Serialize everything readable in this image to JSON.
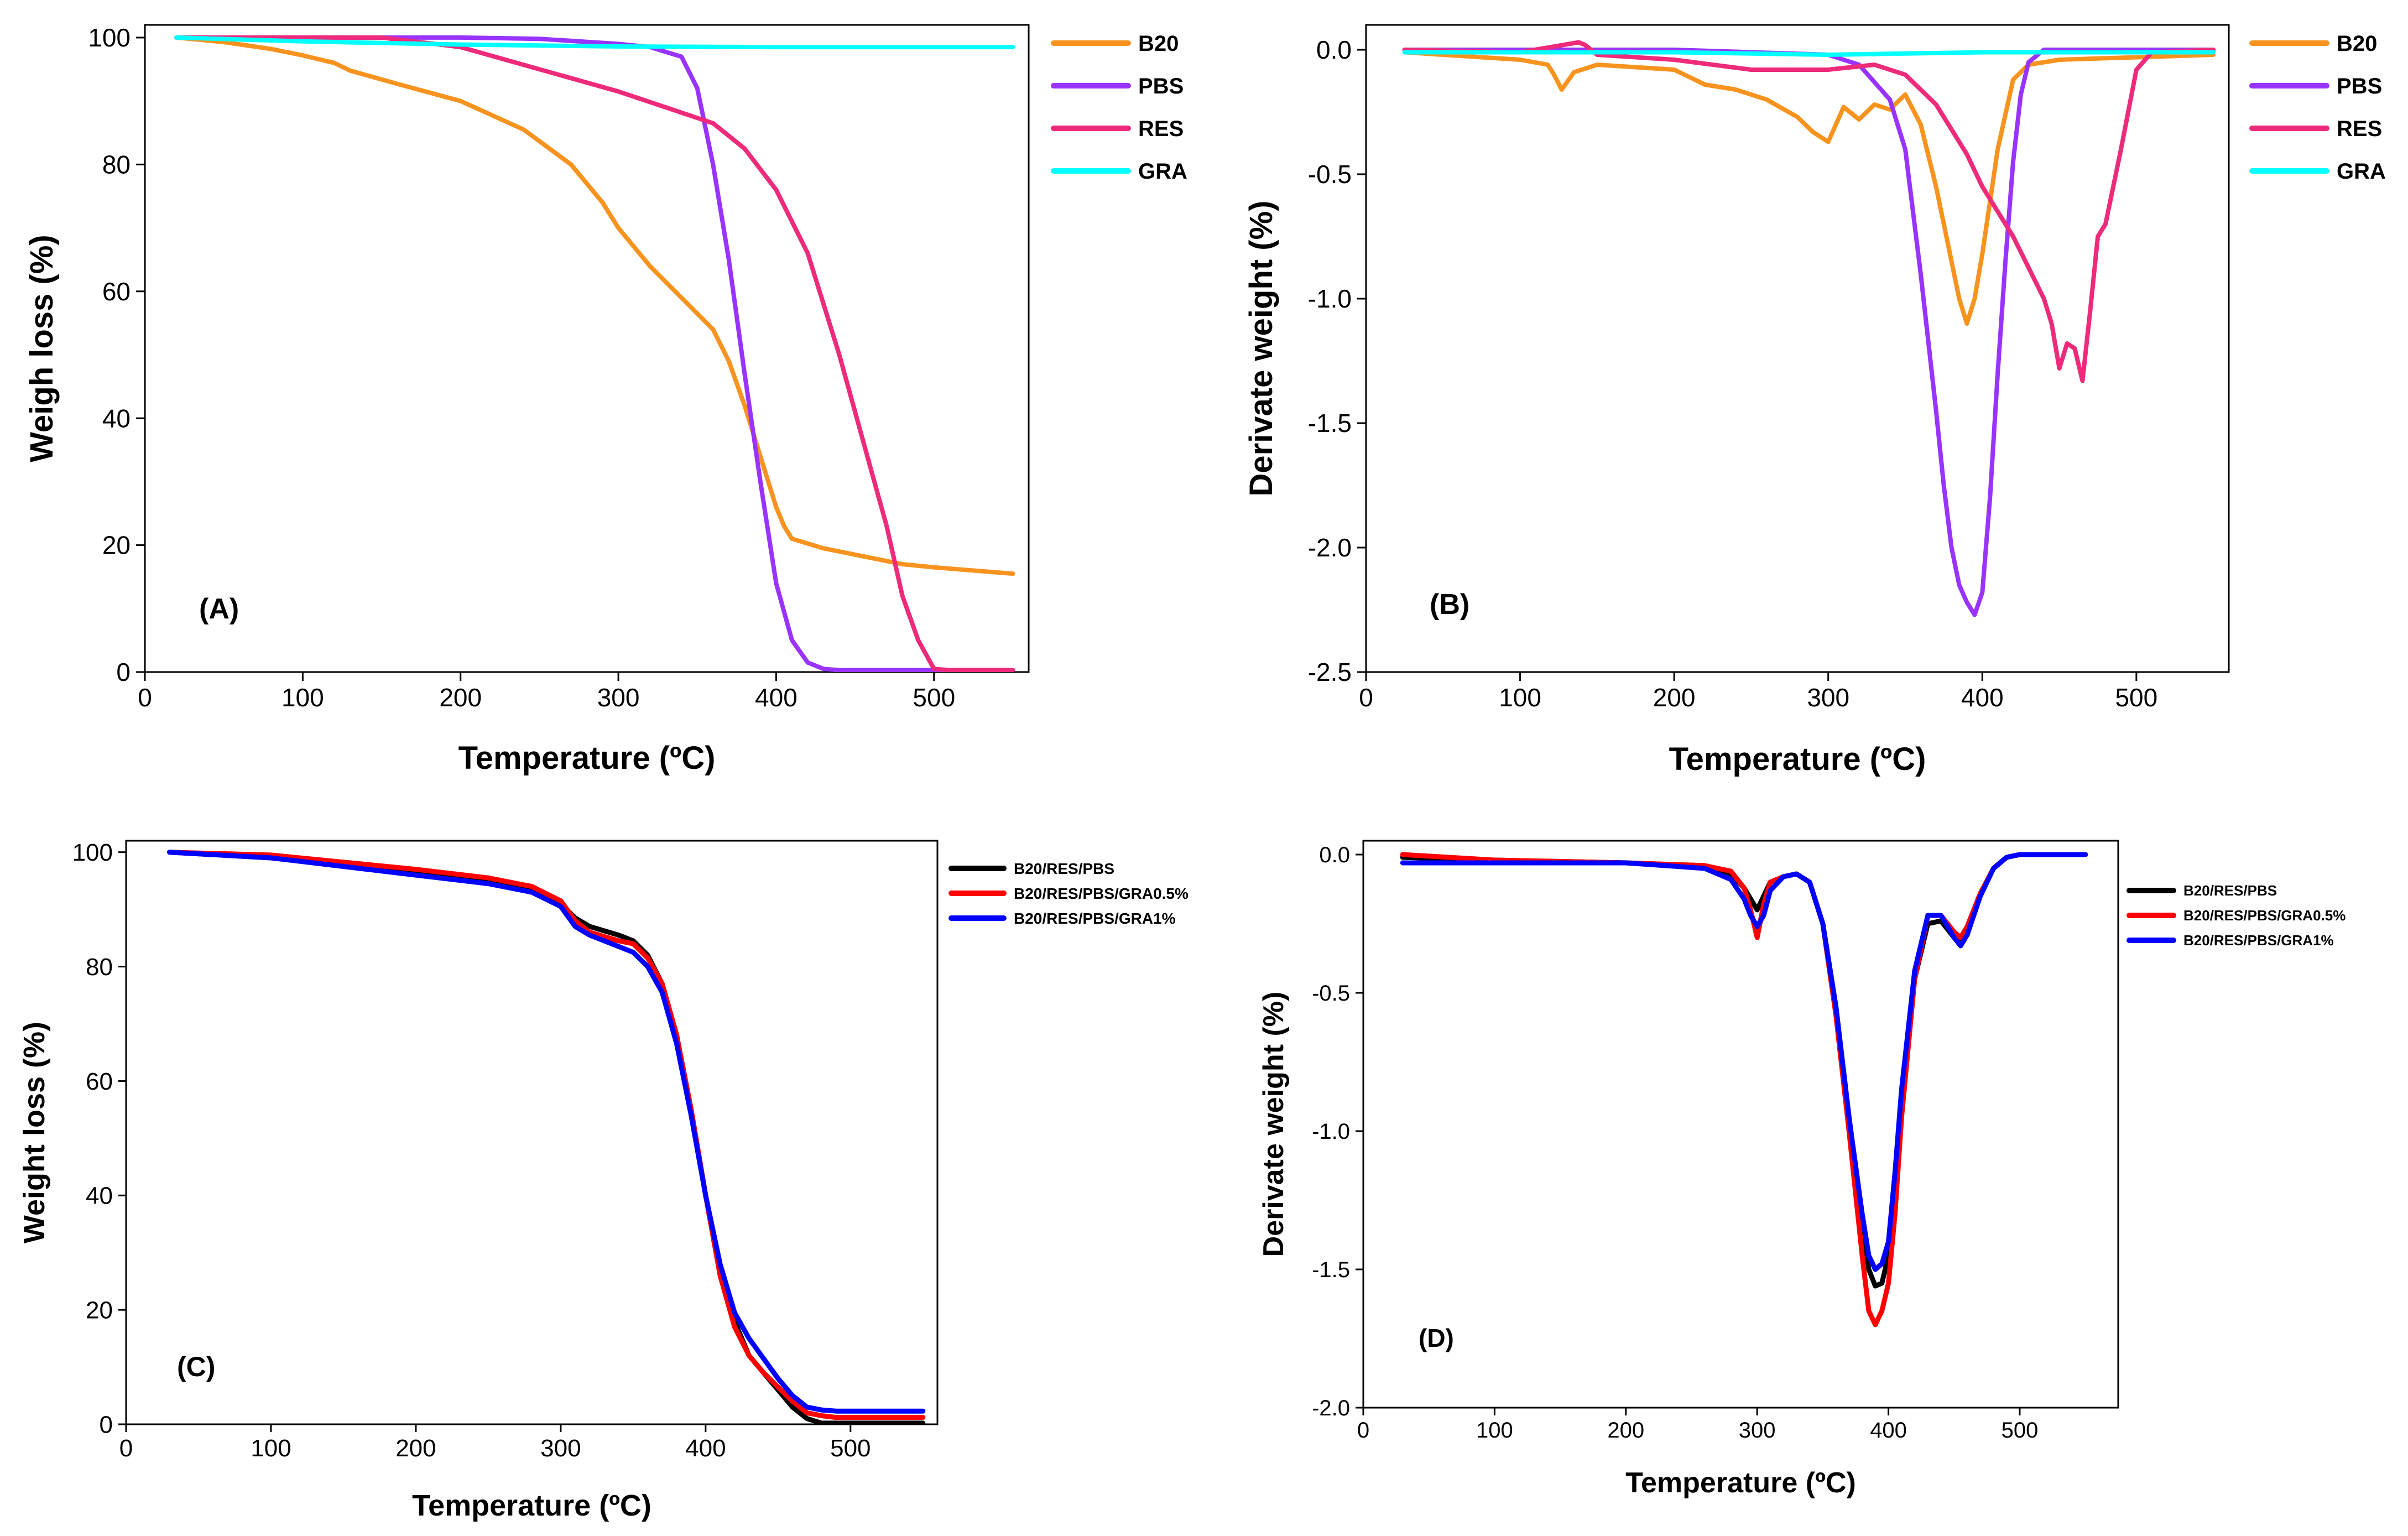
{
  "chart_data": [
    {
      "panel": "A",
      "type": "line",
      "panel_label": "(A)",
      "xlabel": "Temperature (ºC)",
      "ylabel": "Weigh loss (%)",
      "xlim": [
        0,
        560
      ],
      "ylim": [
        0,
        102
      ],
      "xticks": [
        0,
        100,
        200,
        300,
        400,
        500
      ],
      "yticks": [
        0,
        20,
        40,
        60,
        80,
        100
      ],
      "grid": false,
      "legend_position": "outside-right",
      "series": [
        {
          "name": "B20",
          "color": "#f7931e",
          "x": [
            20,
            50,
            80,
            100,
            120,
            130,
            160,
            200,
            240,
            270,
            290,
            300,
            320,
            340,
            360,
            370,
            380,
            390,
            395,
            400,
            405,
            410,
            430,
            450,
            480,
            500,
            550
          ],
          "y": [
            100,
            99.3,
            98.2,
            97.2,
            96,
            94.8,
            92.7,
            90,
            85.5,
            80,
            74,
            70,
            64,
            59,
            54,
            49,
            42,
            34,
            30,
            26,
            23,
            21,
            19.5,
            18.5,
            17,
            16.5,
            15.5
          ]
        },
        {
          "name": "PBS",
          "color": "#9933ff",
          "x": [
            20,
            100,
            200,
            250,
            300,
            320,
            340,
            350,
            360,
            370,
            380,
            390,
            400,
            410,
            420,
            430,
            440,
            450,
            500,
            550
          ],
          "y": [
            100,
            100,
            100,
            99.8,
            99,
            98.5,
            97,
            92,
            80,
            65,
            47,
            30,
            14,
            5,
            1.5,
            0.5,
            0.3,
            0.3,
            0.3,
            0.3
          ]
        },
        {
          "name": "RES",
          "color": "#ee2a7b",
          "x": [
            20,
            100,
            150,
            200,
            250,
            300,
            330,
            360,
            380,
            400,
            420,
            440,
            460,
            470,
            480,
            490,
            500,
            510,
            550
          ],
          "y": [
            100,
            100,
            100,
            98.5,
            95,
            91.5,
            89,
            86.5,
            82.5,
            76,
            66,
            50,
            32,
            23,
            12,
            5,
            0.5,
            0.3,
            0.3
          ]
        },
        {
          "name": "GRA",
          "color": "#00ffff",
          "x": [
            20,
            100,
            200,
            300,
            400,
            500,
            550
          ],
          "y": [
            100,
            99.4,
            98.9,
            98.6,
            98.5,
            98.5,
            98.5
          ]
        }
      ]
    },
    {
      "panel": "B",
      "type": "line",
      "panel_label": "(B)",
      "xlabel": "Temperature (ºC)",
      "ylabel": "Derivate weight (%)",
      "xlim": [
        0,
        560
      ],
      "ylim": [
        -2.5,
        0.1
      ],
      "xticks": [
        0,
        100,
        200,
        300,
        400,
        500
      ],
      "yticks": [
        0.0,
        -0.5,
        -1.0,
        -1.5,
        -2.0,
        -2.5
      ],
      "ytick_labels": [
        "0.0",
        "-0.5",
        "-1.0",
        "-1.5",
        "-2.0",
        "-2.5"
      ],
      "grid": false,
      "legend_position": "outside-right",
      "series": [
        {
          "name": "B20",
          "color": "#f7931e",
          "x": [
            25,
            50,
            100,
            118,
            122,
            127,
            135,
            150,
            200,
            220,
            240,
            260,
            280,
            290,
            300,
            310,
            320,
            330,
            340,
            350,
            360,
            370,
            380,
            385,
            390,
            395,
            400,
            410,
            420,
            430,
            450,
            500,
            550
          ],
          "y": [
            -0.01,
            -0.02,
            -0.04,
            -0.06,
            -0.1,
            -0.16,
            -0.09,
            -0.06,
            -0.08,
            -0.14,
            -0.16,
            -0.2,
            -0.27,
            -0.33,
            -0.37,
            -0.23,
            -0.28,
            -0.22,
            -0.24,
            -0.18,
            -0.3,
            -0.55,
            -0.85,
            -1.0,
            -1.1,
            -1.0,
            -0.82,
            -0.4,
            -0.12,
            -0.06,
            -0.04,
            -0.03,
            -0.02
          ]
        },
        {
          "name": "PBS",
          "color": "#9933ff",
          "x": [
            25,
            100,
            200,
            300,
            320,
            340,
            350,
            360,
            370,
            375,
            380,
            385,
            390,
            395,
            400,
            405,
            410,
            415,
            420,
            425,
            430,
            440,
            450,
            500,
            550
          ],
          "y": [
            0,
            0,
            0,
            -0.02,
            -0.06,
            -0.2,
            -0.4,
            -0.9,
            -1.45,
            -1.75,
            -2.0,
            -2.15,
            -2.22,
            -2.27,
            -2.18,
            -1.8,
            -1.3,
            -0.85,
            -0.45,
            -0.18,
            -0.05,
            0,
            0,
            0,
            0
          ]
        },
        {
          "name": "RES",
          "color": "#ee2a7b",
          "x": [
            25,
            100,
            138,
            142,
            150,
            200,
            250,
            300,
            330,
            350,
            370,
            380,
            390,
            400,
            420,
            440,
            445,
            450,
            455,
            460,
            465,
            470,
            475,
            480,
            490,
            500,
            510,
            550
          ],
          "y": [
            0,
            -0.01,
            0.03,
            0.02,
            -0.02,
            -0.04,
            -0.08,
            -0.08,
            -0.06,
            -0.1,
            -0.22,
            -0.32,
            -0.42,
            -0.55,
            -0.75,
            -1.0,
            -1.1,
            -1.28,
            -1.18,
            -1.2,
            -1.33,
            -1.05,
            -0.75,
            -0.7,
            -0.4,
            -0.08,
            -0.01,
            0
          ]
        },
        {
          "name": "GRA",
          "color": "#00ffff",
          "x": [
            25,
            100,
            200,
            300,
            400,
            500,
            550
          ],
          "y": [
            -0.01,
            -0.01,
            -0.01,
            -0.02,
            -0.01,
            -0.01,
            -0.01
          ]
        }
      ]
    },
    {
      "panel": "C",
      "type": "line",
      "panel_label": "(C)",
      "xlabel": "Temperature (ºC)",
      "ylabel": "Weight loss (%)",
      "xlim": [
        0,
        560
      ],
      "ylim": [
        0,
        102
      ],
      "xticks": [
        0,
        100,
        200,
        300,
        400,
        500
      ],
      "yticks": [
        0,
        20,
        40,
        60,
        80,
        100
      ],
      "grid": false,
      "legend_position": "top-right",
      "series": [
        {
          "name": "B20/RES/PBS",
          "color": "#000000",
          "x": [
            30,
            100,
            200,
            250,
            280,
            300,
            310,
            320,
            340,
            350,
            360,
            370,
            380,
            390,
            400,
            410,
            420,
            430,
            440,
            450,
            460,
            470,
            480,
            490,
            500,
            550
          ],
          "y": [
            100,
            99,
            96.5,
            95,
            93.5,
            91,
            88.5,
            87,
            85.5,
            84.5,
            82,
            77,
            68,
            55,
            40,
            27,
            18,
            12,
            9,
            6,
            3,
            1,
            0.2,
            0.2,
            0.2,
            0.2
          ]
        },
        {
          "name": "B20/RES/PBS/GRA0.5%",
          "color": "#ff0000",
          "x": [
            30,
            100,
            200,
            250,
            280,
            300,
            310,
            320,
            340,
            350,
            360,
            370,
            380,
            390,
            400,
            410,
            420,
            430,
            440,
            450,
            460,
            470,
            480,
            490,
            500,
            550
          ],
          "y": [
            100,
            99.5,
            97,
            95.5,
            94,
            91.5,
            88,
            86,
            84.5,
            84,
            81.5,
            77,
            68,
            55,
            40,
            26,
            17,
            12,
            9,
            6.5,
            4,
            2,
            1.5,
            1.2,
            1.2,
            1.2
          ]
        },
        {
          "name": "B20/RES/PBS/GRA1%",
          "color": "#0000ff",
          "x": [
            30,
            100,
            200,
            250,
            280,
            300,
            310,
            320,
            340,
            350,
            360,
            370,
            380,
            390,
            400,
            410,
            420,
            430,
            440,
            450,
            460,
            470,
            480,
            490,
            500,
            550
          ],
          "y": [
            100,
            99,
            96,
            94.5,
            93,
            90.5,
            87,
            85.5,
            83.5,
            82.5,
            80,
            75.5,
            66.5,
            54,
            40,
            28,
            19.5,
            15,
            11.5,
            8,
            5,
            3,
            2.5,
            2.3,
            2.3,
            2.3
          ]
        }
      ]
    },
    {
      "panel": "D",
      "type": "line",
      "panel_label": "(D)",
      "xlabel": "Temperature (ºC)",
      "ylabel": "Derivate weight  (%)",
      "xlim": [
        0,
        575
      ],
      "ylim": [
        -2.0,
        0.05
      ],
      "xticks": [
        0,
        100,
        200,
        300,
        400,
        500
      ],
      "yticks": [
        0.0,
        -0.5,
        -1.0,
        -1.5,
        -2.0
      ],
      "ytick_labels": [
        "0.0",
        "-0.5",
        "-1.0",
        "-1.5",
        "-2.0"
      ],
      "grid": false,
      "legend_position": "top-right",
      "series": [
        {
          "name": "B20/RES/PBS",
          "color": "#000000",
          "x": [
            30,
            100,
            200,
            260,
            280,
            290,
            295,
            300,
            305,
            310,
            320,
            330,
            340,
            350,
            360,
            370,
            380,
            385,
            390,
            395,
            400,
            405,
            410,
            420,
            430,
            440,
            450,
            455,
            460,
            470,
            480,
            490,
            500,
            550
          ],
          "y": [
            -0.01,
            -0.02,
            -0.03,
            -0.04,
            -0.07,
            -0.12,
            -0.16,
            -0.2,
            -0.15,
            -0.1,
            -0.08,
            -0.07,
            -0.1,
            -0.25,
            -0.55,
            -0.95,
            -1.35,
            -1.5,
            -1.56,
            -1.55,
            -1.45,
            -1.2,
            -0.9,
            -0.45,
            -0.25,
            -0.24,
            -0.3,
            -0.32,
            -0.28,
            -0.15,
            -0.05,
            -0.01,
            0,
            0
          ]
        },
        {
          "name": "B20/RES/PBS/GRA0.5%",
          "color": "#ff0000",
          "x": [
            30,
            100,
            200,
            260,
            280,
            290,
            295,
            300,
            305,
            310,
            320,
            330,
            340,
            350,
            360,
            370,
            380,
            385,
            390,
            395,
            400,
            405,
            410,
            420,
            430,
            440,
            450,
            455,
            460,
            470,
            480,
            490,
            500,
            550
          ],
          "y": [
            0,
            -0.02,
            -0.03,
            -0.04,
            -0.06,
            -0.12,
            -0.2,
            -0.3,
            -0.18,
            -0.1,
            -0.08,
            -0.07,
            -0.1,
            -0.25,
            -0.58,
            -1.0,
            -1.45,
            -1.65,
            -1.7,
            -1.65,
            -1.55,
            -1.3,
            -0.95,
            -0.45,
            -0.22,
            -0.22,
            -0.28,
            -0.3,
            -0.26,
            -0.14,
            -0.05,
            -0.01,
            0,
            0
          ]
        },
        {
          "name": "B20/RES/PBS/GRA1%",
          "color": "#0000ff",
          "x": [
            30,
            100,
            200,
            260,
            280,
            290,
            295,
            300,
            305,
            310,
            320,
            330,
            340,
            350,
            360,
            370,
            380,
            385,
            390,
            395,
            400,
            405,
            410,
            420,
            430,
            440,
            450,
            455,
            460,
            470,
            480,
            490,
            500,
            550
          ],
          "y": [
            -0.03,
            -0.03,
            -0.03,
            -0.05,
            -0.09,
            -0.16,
            -0.22,
            -0.26,
            -0.22,
            -0.13,
            -0.08,
            -0.07,
            -0.1,
            -0.25,
            -0.55,
            -0.95,
            -1.3,
            -1.45,
            -1.5,
            -1.48,
            -1.4,
            -1.15,
            -0.85,
            -0.42,
            -0.22,
            -0.22,
            -0.3,
            -0.33,
            -0.29,
            -0.15,
            -0.05,
            -0.01,
            0,
            0
          ]
        }
      ]
    }
  ]
}
